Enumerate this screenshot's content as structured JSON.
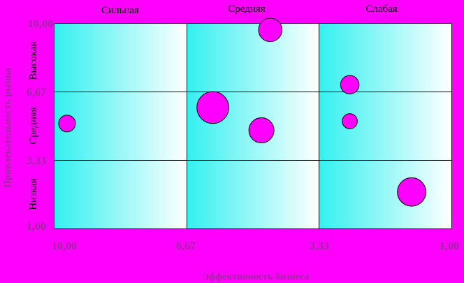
{
  "chart_data": {
    "type": "scatter",
    "subtype": "bubble",
    "xlabel": "Эффективность бизнеса",
    "ylabel": "Привлекательность рынка",
    "column_labels": [
      "Сильная",
      "Средняя",
      "Слабая"
    ],
    "row_labels": [
      "Высокая",
      "Средняя",
      "Низкая"
    ],
    "x_ticks": [
      "10,00",
      "6,67",
      "3,33",
      "1,00"
    ],
    "y_ticks": [
      "10,00",
      "6,67",
      "3,33",
      "1,00"
    ],
    "xlim": [
      10.0,
      1.0
    ],
    "ylim": [
      1.0,
      10.0
    ],
    "x_reversed": true,
    "grid": true,
    "points": [
      {
        "x": 9.7,
        "y": 5.6,
        "size": 1.0
      },
      {
        "x": 6.4,
        "y": 6.3,
        "size": 1.9
      },
      {
        "x": 5.1,
        "y": 9.7,
        "size": 1.4
      },
      {
        "x": 5.3,
        "y": 5.3,
        "size": 1.5
      },
      {
        "x": 3.3,
        "y": 7.3,
        "size": 1.1
      },
      {
        "x": 3.3,
        "y": 5.7,
        "size": 0.9
      },
      {
        "x": 1.9,
        "y": 2.6,
        "size": 1.7
      }
    ],
    "colors": {
      "background": "#ff00ff",
      "bubble": "#ff00ff",
      "bubble_stroke": "#000000",
      "plot_gradient_start": "#33f0f0",
      "plot_gradient_end": "#ffffff",
      "axis_text": "#9b2b9b"
    }
  }
}
